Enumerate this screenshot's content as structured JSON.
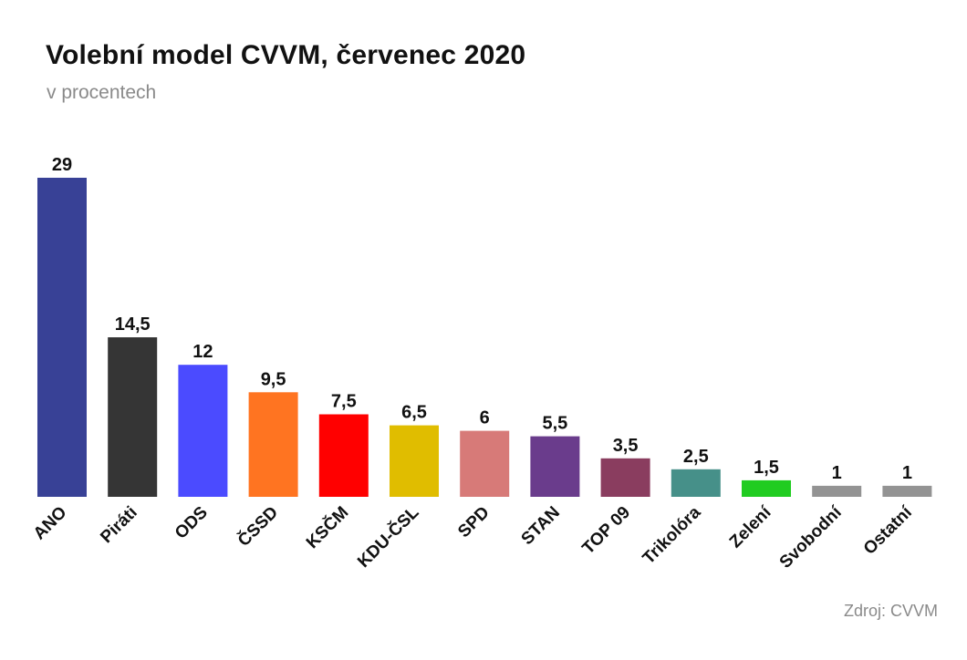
{
  "chart_data": {
    "type": "bar",
    "title": "Volební model CVVM, červenec 2020",
    "subtitle": "v procentech",
    "source": "Zdroj: CVVM",
    "categories": [
      "ANO",
      "Piráti",
      "ODS",
      "ČSSD",
      "KSČM",
      "KDU-ČSL",
      "SPD",
      "STAN",
      "TOP 09",
      "Trikolóra",
      "Zelení",
      "Svobodní",
      "Ostatní"
    ],
    "values": [
      29,
      14.5,
      12,
      9.5,
      7.5,
      6.5,
      6,
      5.5,
      3.5,
      2.5,
      1.5,
      1,
      1
    ],
    "value_labels": [
      "29",
      "14,5",
      "12",
      "9,5",
      "7,5",
      "6,5",
      "6",
      "5,5",
      "3,5",
      "2,5",
      "1,5",
      "1",
      "1"
    ],
    "colors": [
      "#384196",
      "#353535",
      "#4b4bff",
      "#ff7421",
      "#ff0000",
      "#e0bd00",
      "#d77a78",
      "#6a3c8c",
      "#8a3d5f",
      "#469089",
      "#21cc21",
      "#939393",
      "#939393"
    ],
    "ylim": [
      0,
      29
    ],
    "grid": false,
    "legend": "none"
  }
}
